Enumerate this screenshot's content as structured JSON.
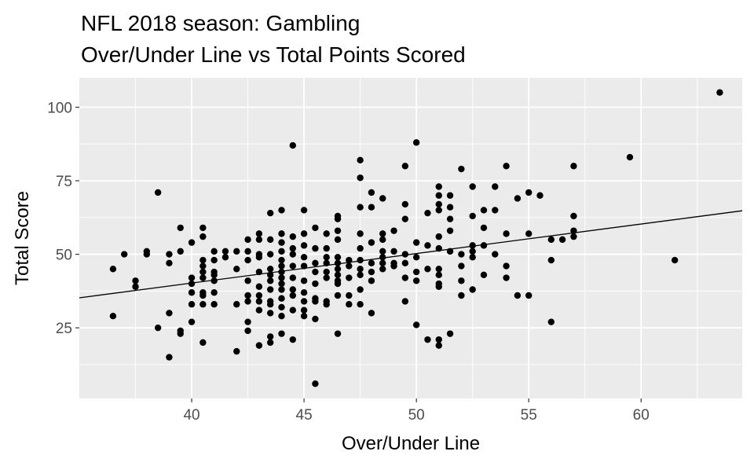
{
  "chart_data": {
    "type": "scatter",
    "title_lines": [
      "NFL 2018 season: Gambling",
      "Over/Under Line vs Total Points Scored"
    ],
    "xlabel": "Over/Under Line",
    "ylabel": "Total Score",
    "xlim": [
      35,
      64.5
    ],
    "ylim": [
      1,
      110
    ],
    "x_ticks": [
      40,
      45,
      50,
      55,
      60
    ],
    "y_ticks": [
      25,
      50,
      75,
      100
    ],
    "x_tick_labels": [
      "40",
      "45",
      "50",
      "55",
      "60"
    ],
    "y_tick_labels": [
      "25",
      "50",
      "75",
      "100"
    ],
    "grid": true,
    "legend": "none",
    "colors": {
      "panel": "#ebebeb",
      "grid": "#ffffff",
      "point": "#000000",
      "line": "#000000"
    },
    "trend_line": {
      "x": [
        35,
        64.5
      ],
      "y": [
        35.2,
        64.8
      ]
    },
    "points": [
      [
        36.5,
        45
      ],
      [
        36.5,
        29
      ],
      [
        37,
        50
      ],
      [
        37.5,
        41
      ],
      [
        37.5,
        39
      ],
      [
        38,
        51
      ],
      [
        38,
        50
      ],
      [
        38.5,
        71
      ],
      [
        38.5,
        25
      ],
      [
        39,
        50
      ],
      [
        39,
        47
      ],
      [
        39,
        30
      ],
      [
        39,
        15
      ],
      [
        39.5,
        59
      ],
      [
        39.5,
        51
      ],
      [
        39.5,
        24
      ],
      [
        39.5,
        23
      ],
      [
        40,
        54
      ],
      [
        40,
        42
      ],
      [
        40,
        40
      ],
      [
        40,
        37
      ],
      [
        40,
        33
      ],
      [
        40,
        27
      ],
      [
        40.5,
        59
      ],
      [
        40.5,
        56
      ],
      [
        40.5,
        48
      ],
      [
        40.5,
        46
      ],
      [
        40.5,
        44
      ],
      [
        40.5,
        42
      ],
      [
        40.5,
        37
      ],
      [
        40.5,
        36
      ],
      [
        40.5,
        33
      ],
      [
        40.5,
        20
      ],
      [
        41,
        51
      ],
      [
        41,
        48
      ],
      [
        41,
        44
      ],
      [
        41,
        43
      ],
      [
        41,
        41
      ],
      [
        41,
        37
      ],
      [
        41,
        33
      ],
      [
        41.5,
        51
      ],
      [
        41.5,
        49
      ],
      [
        42,
        51
      ],
      [
        42,
        45
      ],
      [
        42,
        33
      ],
      [
        42,
        17
      ],
      [
        42.5,
        55
      ],
      [
        42.5,
        51
      ],
      [
        42.5,
        48
      ],
      [
        42.5,
        41
      ],
      [
        42.5,
        36
      ],
      [
        42.5,
        34
      ],
      [
        42.5,
        27
      ],
      [
        42.5,
        24
      ],
      [
        43,
        57
      ],
      [
        43,
        55
      ],
      [
        43,
        50
      ],
      [
        43,
        49
      ],
      [
        43,
        44
      ],
      [
        43,
        39
      ],
      [
        43,
        36
      ],
      [
        43,
        34
      ],
      [
        43,
        31
      ],
      [
        43,
        19
      ],
      [
        43.5,
        64
      ],
      [
        43.5,
        55
      ],
      [
        43.5,
        50
      ],
      [
        43.5,
        45
      ],
      [
        43.5,
        43
      ],
      [
        43.5,
        41
      ],
      [
        43.5,
        38
      ],
      [
        43.5,
        34
      ],
      [
        43.5,
        33
      ],
      [
        43.5,
        30
      ],
      [
        43.5,
        22
      ],
      [
        43.5,
        20
      ],
      [
        44,
        65
      ],
      [
        44,
        57
      ],
      [
        44,
        54
      ],
      [
        44,
        51
      ],
      [
        44,
        48
      ],
      [
        44,
        46
      ],
      [
        44,
        44
      ],
      [
        44,
        42
      ],
      [
        44,
        40
      ],
      [
        44,
        38
      ],
      [
        44,
        35
      ],
      [
        44,
        32
      ],
      [
        44,
        29
      ],
      [
        44,
        23
      ],
      [
        44.5,
        87
      ],
      [
        44.5,
        56
      ],
      [
        44.5,
        52
      ],
      [
        44.5,
        50
      ],
      [
        44.5,
        46
      ],
      [
        44.5,
        42
      ],
      [
        44.5,
        38
      ],
      [
        44.5,
        36
      ],
      [
        44.5,
        31
      ],
      [
        44.5,
        21
      ],
      [
        45,
        65
      ],
      [
        45,
        57
      ],
      [
        45,
        53
      ],
      [
        45,
        49
      ],
      [
        45,
        46
      ],
      [
        45,
        41
      ],
      [
        45,
        37
      ],
      [
        45,
        34
      ],
      [
        45,
        31
      ],
      [
        45,
        29
      ],
      [
        45.5,
        59
      ],
      [
        45.5,
        52
      ],
      [
        45.5,
        47
      ],
      [
        45.5,
        44
      ],
      [
        45.5,
        40
      ],
      [
        45.5,
        35
      ],
      [
        45.5,
        34
      ],
      [
        45.5,
        28
      ],
      [
        45.5,
        6
      ],
      [
        46,
        57
      ],
      [
        46,
        52
      ],
      [
        46,
        49
      ],
      [
        46,
        47
      ],
      [
        46,
        44
      ],
      [
        46,
        42
      ],
      [
        46,
        34
      ],
      [
        46,
        33
      ],
      [
        46.5,
        63
      ],
      [
        46.5,
        62
      ],
      [
        46.5,
        58
      ],
      [
        46.5,
        55
      ],
      [
        46.5,
        49
      ],
      [
        46.5,
        47
      ],
      [
        46.5,
        45
      ],
      [
        46.5,
        43
      ],
      [
        46.5,
        41
      ],
      [
        46.5,
        40
      ],
      [
        46.5,
        36
      ],
      [
        46.5,
        23
      ],
      [
        47,
        48
      ],
      [
        47,
        46
      ],
      [
        47,
        42
      ],
      [
        47,
        36
      ],
      [
        47,
        33
      ],
      [
        47.5,
        82
      ],
      [
        47.5,
        76
      ],
      [
        47.5,
        66
      ],
      [
        47.5,
        57
      ],
      [
        47.5,
        52
      ],
      [
        47.5,
        48
      ],
      [
        47.5,
        45
      ],
      [
        47.5,
        43
      ],
      [
        47.5,
        38
      ],
      [
        47.5,
        33
      ],
      [
        48,
        71
      ],
      [
        48,
        66
      ],
      [
        48,
        54
      ],
      [
        48,
        47
      ],
      [
        48,
        44
      ],
      [
        48,
        41
      ],
      [
        48,
        30
      ],
      [
        48.5,
        69
      ],
      [
        48.5,
        57
      ],
      [
        48.5,
        55
      ],
      [
        48.5,
        51
      ],
      [
        48.5,
        49
      ],
      [
        48.5,
        47
      ],
      [
        48.5,
        45
      ],
      [
        49,
        58
      ],
      [
        49,
        51
      ],
      [
        49,
        47
      ],
      [
        49,
        46
      ],
      [
        49.5,
        80
      ],
      [
        49.5,
        67
      ],
      [
        49.5,
        62
      ],
      [
        49.5,
        50
      ],
      [
        49.5,
        47
      ],
      [
        49.5,
        42
      ],
      [
        49.5,
        34
      ],
      [
        50,
        88
      ],
      [
        50,
        54
      ],
      [
        50,
        49
      ],
      [
        50,
        44
      ],
      [
        50,
        41
      ],
      [
        50,
        26
      ],
      [
        50.5,
        64
      ],
      [
        50.5,
        53
      ],
      [
        50.5,
        45
      ],
      [
        50.5,
        21
      ],
      [
        51,
        73
      ],
      [
        51,
        70
      ],
      [
        51,
        67
      ],
      [
        51,
        65
      ],
      [
        51,
        56
      ],
      [
        51,
        52
      ],
      [
        51,
        45
      ],
      [
        51,
        43
      ],
      [
        51,
        40
      ],
      [
        51,
        39
      ],
      [
        51,
        21
      ],
      [
        51,
        19
      ],
      [
        51.5,
        70
      ],
      [
        51.5,
        66
      ],
      [
        51.5,
        62
      ],
      [
        51.5,
        58
      ],
      [
        51.5,
        51
      ],
      [
        51.5,
        23
      ],
      [
        52,
        79
      ],
      [
        52,
        50
      ],
      [
        52,
        46
      ],
      [
        52,
        41
      ],
      [
        52,
        36
      ],
      [
        52.5,
        73
      ],
      [
        52.5,
        63
      ],
      [
        52.5,
        53
      ],
      [
        52.5,
        51
      ],
      [
        52.5,
        49
      ],
      [
        52.5,
        38
      ],
      [
        53,
        65
      ],
      [
        53,
        59
      ],
      [
        53,
        53
      ],
      [
        53,
        43
      ],
      [
        53.5,
        73
      ],
      [
        53.5,
        65
      ],
      [
        53.5,
        50
      ],
      [
        54,
        80
      ],
      [
        54,
        57
      ],
      [
        54,
        46
      ],
      [
        54,
        42
      ],
      [
        54.5,
        69
      ],
      [
        54.5,
        36
      ],
      [
        55,
        71
      ],
      [
        55,
        57
      ],
      [
        55,
        36
      ],
      [
        55.5,
        70
      ],
      [
        56,
        55
      ],
      [
        56,
        48
      ],
      [
        56,
        27
      ],
      [
        56.5,
        55
      ],
      [
        57,
        80
      ],
      [
        57,
        63
      ],
      [
        57,
        58
      ],
      [
        57,
        56
      ],
      [
        59.5,
        83
      ],
      [
        61.5,
        48
      ],
      [
        63.5,
        105
      ]
    ]
  }
}
